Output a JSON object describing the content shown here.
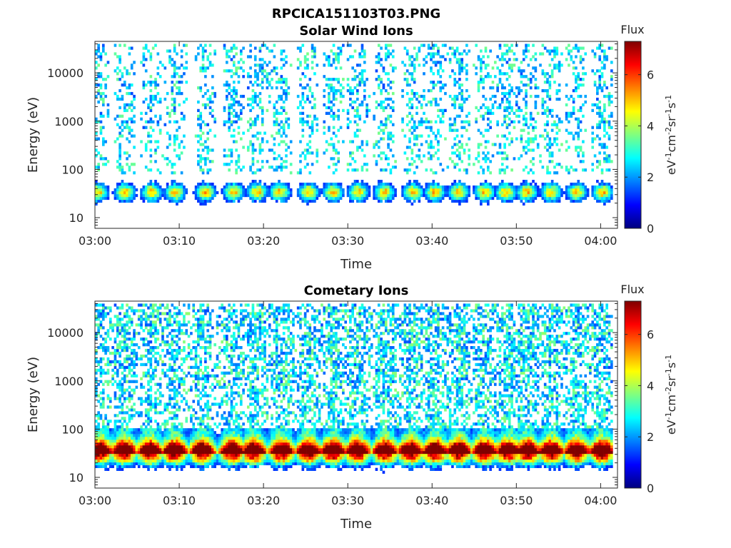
{
  "figure": {
    "title": "RPCICA151103T03.PNG"
  },
  "colors": {
    "axis": "#262626",
    "colormap": [
      "#00007f",
      "#0000ff",
      "#007fff",
      "#00ffff",
      "#7fff7f",
      "#ffff00",
      "#ff7f00",
      "#ff0000",
      "#7f0000"
    ]
  },
  "chart_data": [
    {
      "type": "heatmap",
      "title": "Solar Wind Ions",
      "xlabel": "Time",
      "ylabel": "Energy (eV)",
      "xscale": "linear",
      "yscale": "log",
      "xlim": [
        0,
        62
      ],
      "ylim": [
        6,
        45000
      ],
      "xticks": [
        0,
        10,
        20,
        30,
        40,
        50,
        60
      ],
      "xticklabels": [
        "03:00",
        "03:10",
        "03:20",
        "03:30",
        "03:40",
        "03:50",
        "04:00"
      ],
      "yticks": [
        10,
        100,
        1000,
        10000
      ],
      "yticklabels": [
        "10",
        "100",
        "1000",
        "10000"
      ],
      "burst_times_min": [
        0.2,
        3.4,
        6.6,
        9.4,
        13.0,
        16.3,
        19.1,
        21.8,
        25.2,
        28.1,
        31.1,
        34.2,
        37.6,
        40.2,
        43.0,
        46.1,
        48.6,
        51.1,
        54.0,
        57.0,
        60.1
      ],
      "max_flux": 5.0,
      "colorbar": {
        "label": "Flux",
        "units_label": "eV-1cm-2sr-1s-1",
        "range": [
          0,
          7.3
        ],
        "ticks": [
          0,
          2,
          4,
          6
        ],
        "ticklabels": [
          "0",
          "2",
          "4",
          "6"
        ]
      }
    },
    {
      "type": "heatmap",
      "title": "Cometary Ions",
      "xlabel": "Time",
      "ylabel": "Energy (eV)",
      "xscale": "linear",
      "yscale": "log",
      "xlim": [
        0,
        62
      ],
      "ylim": [
        6,
        45000
      ],
      "xticks": [
        0,
        10,
        20,
        30,
        40,
        50,
        60
      ],
      "xticklabels": [
        "03:00",
        "03:10",
        "03:20",
        "03:30",
        "03:40",
        "03:50",
        "04:00"
      ],
      "yticks": [
        10,
        100,
        1000,
        10000
      ],
      "yticklabels": [
        "10",
        "100",
        "1000",
        "10000"
      ],
      "burst_times_min": [
        0.4,
        3.3,
        6.4,
        9.3,
        12.6,
        16.2,
        18.7,
        22.0,
        25.2,
        28.1,
        31.0,
        34.3,
        37.3,
        40.2,
        43.0,
        46.1,
        48.9,
        51.2,
        54.0,
        57.0,
        60.0
      ],
      "max_flux": 7.0,
      "colorbar": {
        "label": "Flux",
        "units_label": "eV-1cm-2sr-1s-1",
        "range": [
          0,
          7.3
        ],
        "ticks": [
          0,
          2,
          4,
          6
        ],
        "ticklabels": [
          "0",
          "2",
          "4",
          "6"
        ]
      }
    }
  ]
}
